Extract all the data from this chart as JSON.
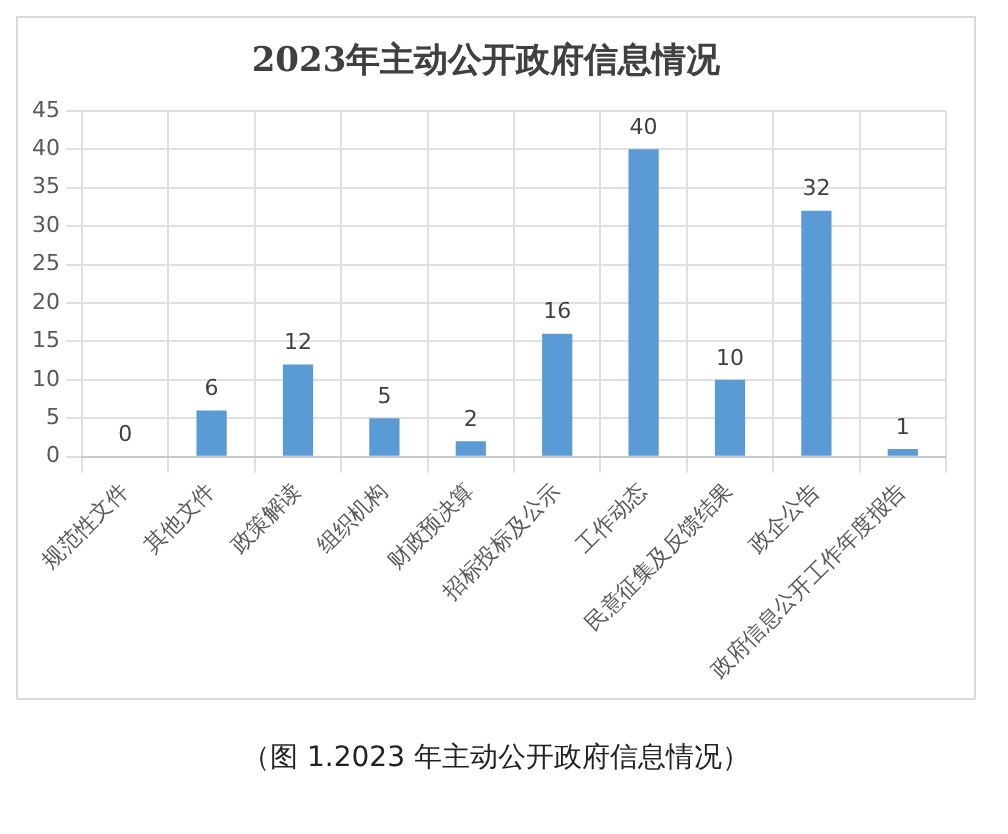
{
  "chart_data": {
    "type": "bar",
    "title": "2023年主动公开政府信息情况",
    "categories": [
      "规范性文件",
      "其他文件",
      "政策解读",
      "组织机构",
      "财政预决算",
      "招标投标及公示",
      "工作动态",
      "民意征集及反馈结果",
      "政企公告",
      "政府信息公开工作年度报告"
    ],
    "values": [
      0,
      6,
      12,
      5,
      2,
      16,
      40,
      10,
      32,
      1
    ],
    "color": "#5b9bd5",
    "ylim": [
      0,
      45
    ],
    "yticks": [
      0,
      5,
      10,
      15,
      20,
      25,
      30,
      35,
      40,
      45
    ],
    "grid": true,
    "data_labels": true,
    "annotations": [
      "（图 1.2023 年主动公开政府信息情况）"
    ]
  }
}
